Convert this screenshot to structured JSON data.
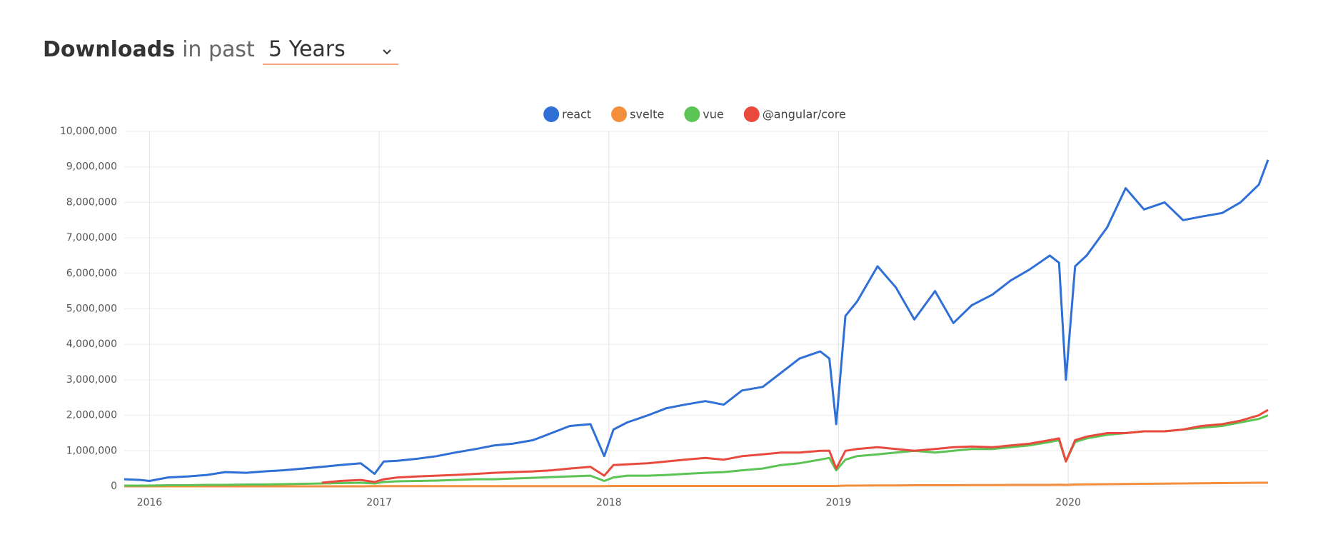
{
  "controls": {
    "title": "Downloads",
    "subtitle": "in past",
    "range": "5 Years"
  },
  "chart_data": {
    "type": "line",
    "x": [
      2015.89,
      2015.96,
      2016.0,
      2016.08,
      2016.17,
      2016.25,
      2016.33,
      2016.42,
      2016.5,
      2016.58,
      2016.67,
      2016.75,
      2016.83,
      2016.92,
      2016.98,
      2017.02,
      2017.08,
      2017.17,
      2017.25,
      2017.33,
      2017.42,
      2017.5,
      2017.58,
      2017.67,
      2017.75,
      2017.83,
      2017.92,
      2017.98,
      2018.02,
      2018.08,
      2018.17,
      2018.25,
      2018.33,
      2018.42,
      2018.5,
      2018.58,
      2018.67,
      2018.75,
      2018.83,
      2018.92,
      2018.96,
      2018.99,
      2019.03,
      2019.08,
      2019.17,
      2019.25,
      2019.33,
      2019.42,
      2019.5,
      2019.58,
      2019.67,
      2019.75,
      2019.83,
      2019.92,
      2019.96,
      2019.99,
      2020.03,
      2020.08,
      2020.17,
      2020.25,
      2020.33,
      2020.42,
      2020.5,
      2020.58,
      2020.67,
      2020.75,
      2020.83,
      2020.87
    ],
    "series": [
      {
        "name": "react",
        "color": "#2f6fd6",
        "values": [
          200000,
          180000,
          150000,
          250000,
          280000,
          320000,
          400000,
          380000,
          420000,
          450000,
          500000,
          550000,
          600000,
          650000,
          350000,
          700000,
          720000,
          780000,
          850000,
          950000,
          1050000,
          1150000,
          1200000,
          1300000,
          1500000,
          1700000,
          1750000,
          850000,
          1600000,
          1800000,
          2000000,
          2200000,
          2300000,
          2400000,
          2300000,
          2700000,
          2800000,
          3200000,
          3600000,
          3800000,
          3600000,
          1750000,
          4800000,
          5200000,
          6200000,
          5600000,
          4700000,
          5500000,
          4600000,
          5100000,
          5400000,
          5800000,
          6100000,
          6500000,
          6300000,
          3000000,
          6200000,
          6500000,
          7300000,
          8400000,
          7800000,
          8000000,
          7500000,
          7600000,
          7700000,
          8000000,
          8500000,
          9200000
        ]
      },
      {
        "name": "svelte",
        "color": "#f28e3c",
        "values": [
          0,
          0,
          0,
          0,
          0,
          0,
          0,
          0,
          0,
          0,
          0,
          0,
          0,
          0,
          5000,
          5000,
          5000,
          5000,
          5000,
          5000,
          5000,
          5000,
          5000,
          5000,
          5000,
          5000,
          5000,
          5000,
          10000,
          10000,
          10000,
          10000,
          10000,
          10000,
          10000,
          10000,
          10000,
          10000,
          10000,
          10000,
          10000,
          10000,
          20000,
          20000,
          25000,
          25000,
          30000,
          30000,
          30000,
          35000,
          35000,
          40000,
          40000,
          40000,
          45000,
          40000,
          50000,
          55000,
          60000,
          65000,
          70000,
          75000,
          80000,
          85000,
          90000,
          95000,
          100000,
          100000
        ]
      },
      {
        "name": "vue",
        "color": "#5cc455",
        "values": [
          20000,
          20000,
          20000,
          30000,
          30000,
          40000,
          40000,
          50000,
          50000,
          60000,
          70000,
          80000,
          90000,
          100000,
          80000,
          120000,
          140000,
          150000,
          160000,
          180000,
          200000,
          200000,
          220000,
          240000,
          260000,
          280000,
          300000,
          150000,
          250000,
          300000,
          300000,
          320000,
          350000,
          380000,
          400000,
          450000,
          500000,
          600000,
          650000,
          750000,
          800000,
          450000,
          750000,
          850000,
          900000,
          950000,
          1000000,
          950000,
          1000000,
          1050000,
          1050000,
          1100000,
          1150000,
          1250000,
          1300000,
          700000,
          1250000,
          1350000,
          1450000,
          1500000,
          1550000,
          1550000,
          1600000,
          1650000,
          1700000,
          1800000,
          1900000,
          2000000
        ]
      },
      {
        "name": "@angular/core",
        "color": "#e84a3e",
        "values": [
          null,
          null,
          null,
          null,
          null,
          null,
          null,
          null,
          null,
          null,
          null,
          100000,
          150000,
          180000,
          120000,
          200000,
          250000,
          280000,
          300000,
          320000,
          350000,
          380000,
          400000,
          420000,
          450000,
          500000,
          550000,
          300000,
          600000,
          620000,
          650000,
          700000,
          750000,
          800000,
          750000,
          850000,
          900000,
          950000,
          950000,
          1000000,
          1000000,
          500000,
          1000000,
          1050000,
          1100000,
          1050000,
          1000000,
          1050000,
          1100000,
          1120000,
          1100000,
          1150000,
          1200000,
          1300000,
          1350000,
          700000,
          1300000,
          1400000,
          1500000,
          1500000,
          1550000,
          1550000,
          1600000,
          1700000,
          1750000,
          1850000,
          2000000,
          2150000
        ]
      }
    ],
    "xlim": [
      2015.89,
      2020.87
    ],
    "xticks": [
      2016,
      2017,
      2018,
      2019,
      2020
    ],
    "ylim": [
      0,
      10000000
    ],
    "yticks": [
      0,
      {
        "value": 1000000,
        "label": "1,000,000"
      },
      {
        "value": 2000000,
        "label": "2,000,000"
      },
      {
        "value": 3000000,
        "label": "3,000,000"
      },
      {
        "value": 4000000,
        "label": "4,000,000"
      },
      {
        "value": 5000000,
        "label": "5,000,000"
      },
      {
        "value": 6000000,
        "label": "6,000,000"
      },
      {
        "value": 7000000,
        "label": "7,000,000"
      },
      {
        "value": 8000000,
        "label": "8,000,000"
      },
      {
        "value": 9000000,
        "label": "9,000,000"
      },
      {
        "value": 10000000,
        "label": "10,000,000"
      }
    ],
    "grid": true,
    "legend": "top"
  }
}
